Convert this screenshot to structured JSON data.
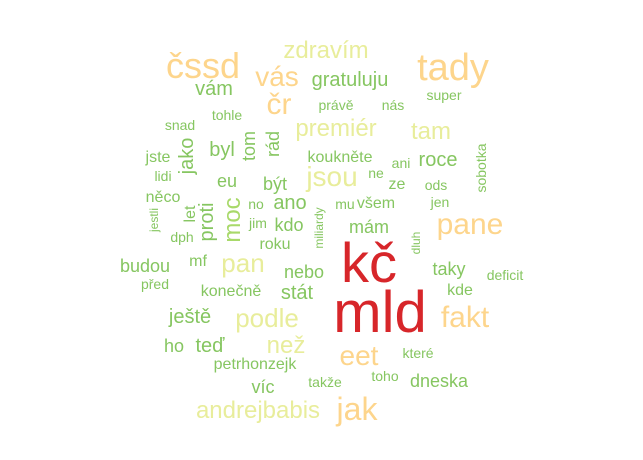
{
  "chart_data": {
    "type": "wordcloud",
    "colors": {
      "red": "#d7262a",
      "orange": "#fdd58c",
      "yellow": "#e8ed9b",
      "light_green": "#a8d96a",
      "green": "#86c661"
    },
    "words": [
      {
        "text": "kč",
        "color": "red"
      },
      {
        "text": "mld",
        "color": "red"
      },
      {
        "text": "čssd",
        "color": "orange"
      },
      {
        "text": "tady",
        "color": "orange"
      },
      {
        "text": "pane",
        "color": "orange"
      },
      {
        "text": "jak",
        "color": "orange"
      },
      {
        "text": "eet",
        "color": "orange"
      },
      {
        "text": "fakt",
        "color": "orange"
      },
      {
        "text": "vás",
        "color": "orange"
      },
      {
        "text": "čr",
        "color": "orange"
      },
      {
        "text": "jsou",
        "color": "yellow"
      },
      {
        "text": "podle",
        "color": "yellow"
      },
      {
        "text": "pan",
        "color": "yellow"
      },
      {
        "text": "premiér",
        "color": "yellow"
      },
      {
        "text": "tam",
        "color": "yellow"
      },
      {
        "text": "zdravím",
        "color": "yellow"
      },
      {
        "text": "andrejbabis",
        "color": "yellow"
      },
      {
        "text": "než",
        "color": "yellow"
      },
      {
        "text": "moc",
        "color": "light_green"
      },
      {
        "text": "gratuluju",
        "color": "green"
      },
      {
        "text": "vám",
        "color": "green"
      },
      {
        "text": "byl",
        "color": "green"
      },
      {
        "text": "jako",
        "color": "green"
      },
      {
        "text": "rád",
        "color": "green"
      },
      {
        "text": "tom",
        "color": "green"
      },
      {
        "text": "roce",
        "color": "green"
      },
      {
        "text": "ještě",
        "color": "green"
      },
      {
        "text": "taky",
        "color": "green"
      },
      {
        "text": "mám",
        "color": "green"
      },
      {
        "text": "stát",
        "color": "green"
      },
      {
        "text": "ano",
        "color": "green"
      },
      {
        "text": "proti",
        "color": "green"
      },
      {
        "text": "teď",
        "color": "green"
      },
      {
        "text": "ho",
        "color": "green"
      },
      {
        "text": "budou",
        "color": "green"
      },
      {
        "text": "dneska",
        "color": "green"
      },
      {
        "text": "víc",
        "color": "green"
      },
      {
        "text": "eu",
        "color": "green"
      },
      {
        "text": "být",
        "color": "green"
      },
      {
        "text": "kdo",
        "color": "green"
      },
      {
        "text": "nebo",
        "color": "green"
      },
      {
        "text": "kde",
        "color": "green"
      },
      {
        "text": "jste",
        "color": "green"
      },
      {
        "text": "mf",
        "color": "green"
      },
      {
        "text": "roku",
        "color": "green"
      },
      {
        "text": "všem",
        "color": "green"
      },
      {
        "text": "ze",
        "color": "green"
      },
      {
        "text": "koukněte",
        "color": "green"
      },
      {
        "text": "konečně",
        "color": "green"
      },
      {
        "text": "let",
        "color": "green"
      },
      {
        "text": "snad",
        "color": "green"
      },
      {
        "text": "tohle",
        "color": "green"
      },
      {
        "text": "právě",
        "color": "green"
      },
      {
        "text": "nás",
        "color": "green"
      },
      {
        "text": "super",
        "color": "green"
      },
      {
        "text": "ani",
        "color": "green"
      },
      {
        "text": "ne",
        "color": "green"
      },
      {
        "text": "ods",
        "color": "green"
      },
      {
        "text": "jen",
        "color": "green"
      },
      {
        "text": "sobotka",
        "color": "green"
      },
      {
        "text": "lidi",
        "color": "green"
      },
      {
        "text": "něco",
        "color": "green"
      },
      {
        "text": "jestli",
        "color": "green"
      },
      {
        "text": "dph",
        "color": "green"
      },
      {
        "text": "no",
        "color": "green"
      },
      {
        "text": "mu",
        "color": "green"
      },
      {
        "text": "jim",
        "color": "green"
      },
      {
        "text": "miliardy",
        "color": "green"
      },
      {
        "text": "dluh",
        "color": "green"
      },
      {
        "text": "deficit",
        "color": "green"
      },
      {
        "text": "před",
        "color": "green"
      },
      {
        "text": "petrhonzejk",
        "color": "green"
      },
      {
        "text": "které",
        "color": "green"
      },
      {
        "text": "toho",
        "color": "green"
      },
      {
        "text": "takže",
        "color": "green"
      }
    ]
  }
}
